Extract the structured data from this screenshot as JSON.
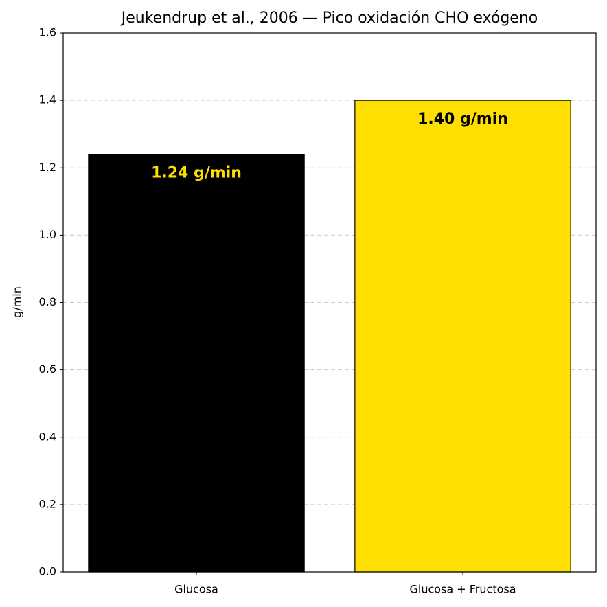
{
  "chart_data": {
    "type": "bar",
    "title": "Jeukendrup et al., 2006 — Pico oxidación CHO exógeno",
    "y_label": "g/min",
    "categories": [
      "Glucosa",
      "Glucosa + Fructosa"
    ],
    "values": [
      1.24,
      1.4
    ],
    "value_labels": [
      "1.24 g/min",
      "1.40 g/min"
    ],
    "colors": [
      "#000000",
      "#FFDF00"
    ],
    "value_label_colors": [
      "#FFDF00",
      "#000000"
    ],
    "edge_color": "#000000",
    "ylim": [
      0,
      1.6
    ],
    "yticks": [
      {
        "value": 0,
        "label": "0.0"
      },
      0.2,
      0.4,
      0.6,
      0.8,
      {
        "value": 1,
        "label": "1.0"
      },
      1.2,
      1.4,
      1.6
    ],
    "grid": true
  }
}
